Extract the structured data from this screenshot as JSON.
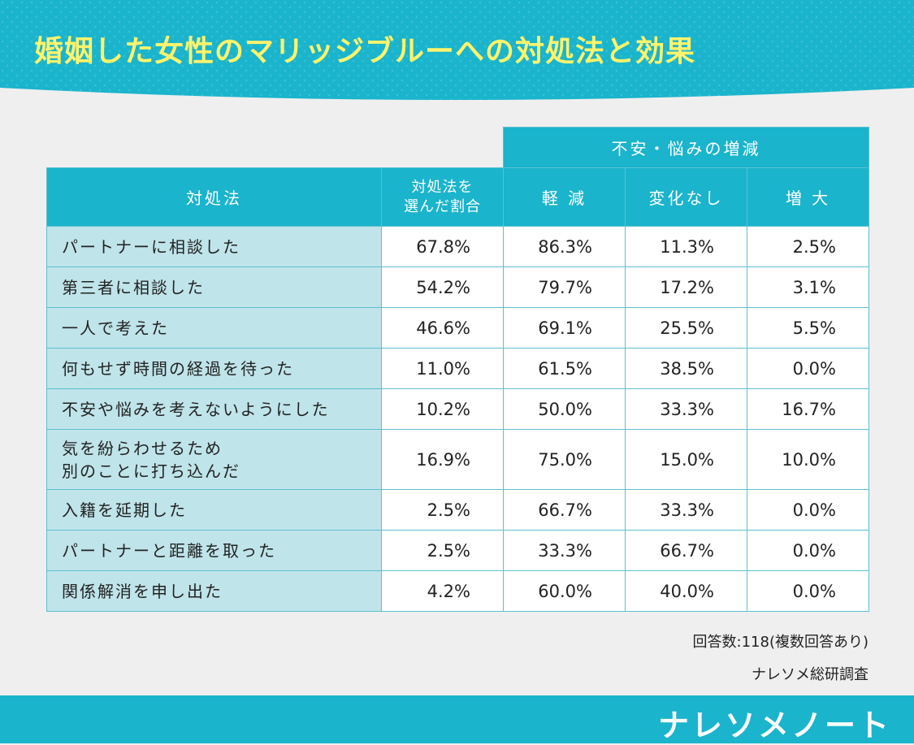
{
  "title": "婚姻した女性のマリッジブルーへの対処法と効果",
  "colors": {
    "accent": "#1ab4cc",
    "title_text": "#fff36b",
    "label_bg": "#bfe4ea",
    "background": "#efefef"
  },
  "chart_data": {
    "type": "table",
    "group_header": "不安・悩みの増減",
    "columns": {
      "method": "対処法",
      "selected_line1": "対処法を",
      "selected_line2": "選んだ割合",
      "decreased": "軽 減",
      "no_change": "変化なし",
      "increased": "増 大"
    },
    "rows": [
      {
        "label": [
          "パートナーに相談した"
        ],
        "values": [
          "67.8%",
          "86.3%",
          "11.3%",
          "2.5%"
        ]
      },
      {
        "label": [
          "第三者に相談した"
        ],
        "values": [
          "54.2%",
          "79.7%",
          "17.2%",
          "3.1%"
        ]
      },
      {
        "label": [
          "一人で考えた"
        ],
        "values": [
          "46.6%",
          "69.1%",
          "25.5%",
          "5.5%"
        ]
      },
      {
        "label": [
          "何もせず時間の経過を待った"
        ],
        "values": [
          "11.0%",
          "61.5%",
          "38.5%",
          "0.0%"
        ]
      },
      {
        "label": [
          "不安や悩みを考えないようにした"
        ],
        "values": [
          "10.2%",
          "50.0%",
          "33.3%",
          "16.7%"
        ]
      },
      {
        "label": [
          "気を紛らわせるため",
          "別のことに打ち込んだ"
        ],
        "values": [
          "16.9%",
          "75.0%",
          "15.0%",
          "10.0%"
        ]
      },
      {
        "label": [
          "入籍を延期した"
        ],
        "values": [
          "2.5%",
          "66.7%",
          "33.3%",
          "0.0%"
        ]
      },
      {
        "label": [
          "パートナーと距離を取った"
        ],
        "values": [
          "2.5%",
          "33.3%",
          "66.7%",
          "0.0%"
        ]
      },
      {
        "label": [
          "関係解消を申し出た"
        ],
        "values": [
          "4.2%",
          "60.0%",
          "40.0%",
          "0.0%"
        ]
      }
    ]
  },
  "footnote": {
    "responses": "回答数:118(複数回答あり)",
    "source": "ナレソメ総研調査"
  },
  "brand": "ナレソメノート"
}
